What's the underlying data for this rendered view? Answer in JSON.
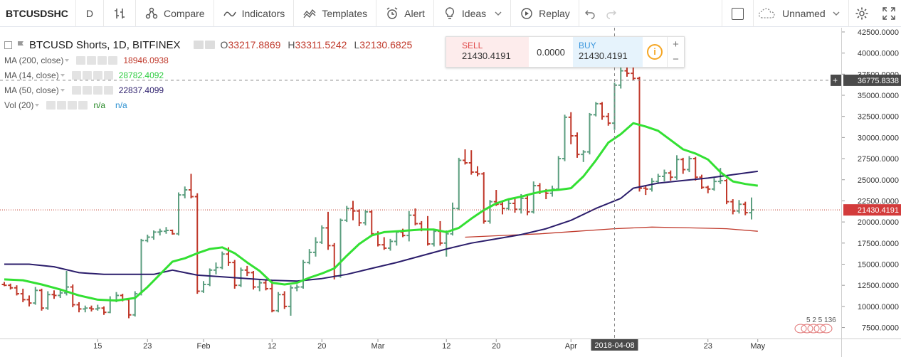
{
  "toolbar": {
    "symbol": "BTCUSDSHC",
    "interval": "D",
    "compare": "Compare",
    "indicators": "Indicators",
    "templates": "Templates",
    "alert": "Alert",
    "ideas": "Ideas",
    "replay": "Replay",
    "layout_name": "Unnamed"
  },
  "legend": {
    "title": "BTCUSD Shorts, 1D, BITFINEX",
    "open_label": "O",
    "open": "33217.8869",
    "high_label": "H",
    "high": "33311.5242",
    "low_label": "L",
    "low": "32130.6825",
    "studies": [
      {
        "label": "MA (200, close)",
        "value": "18946.0938",
        "color": "#c0392b"
      },
      {
        "label": "MA (14, close)",
        "value": "28782.4092",
        "color": "#2ecc40"
      },
      {
        "label": "MA (50, close)",
        "value": "22837.4099",
        "color": "#2b1d6b"
      },
      {
        "label": "Vol (20)",
        "value": "n/a",
        "value2": "n/a",
        "color": "#2a8a2a",
        "color2": "#2a8fd0"
      }
    ]
  },
  "trade": {
    "sell_label": "SELL",
    "sell_price_a": "214",
    "sell_price_b": "30.4191",
    "spread": "0.0000",
    "buy_label": "BUY",
    "buy_price_a": "214",
    "buy_price_b": "30.4191",
    "info": "i",
    "plus": "+",
    "minus": "−"
  },
  "price_axis": {
    "crosshair_label": "36775.8338",
    "last_price_label": "21430.4191",
    "crosshair_plus": "+"
  },
  "time_axis": {
    "crosshair_label": "2018-04-08"
  },
  "watermark_text": "5 2 5 136",
  "colors": {
    "up": "#5b9e7f",
    "down": "#c0392b",
    "ma14": "#33e033",
    "ma50": "#2b1d6b",
    "ma200": "#c0392b"
  },
  "chart_data": {
    "type": "ohlc",
    "y_ticks": [
      7500,
      10000,
      12500,
      15000,
      17500,
      20000,
      22500,
      25000,
      27500,
      30000,
      32500,
      35000,
      37500,
      40000,
      42500
    ],
    "ylim": [
      6200,
      43000
    ],
    "x_ticks": [
      {
        "label": "15",
        "bar": 15
      },
      {
        "label": "23",
        "bar": 23
      },
      {
        "label": "Feb",
        "bar": 32
      },
      {
        "label": "12",
        "bar": 43
      },
      {
        "label": "20",
        "bar": 51
      },
      {
        "label": "Mar",
        "bar": 60
      },
      {
        "label": "12",
        "bar": 71
      },
      {
        "label": "20",
        "bar": 79
      },
      {
        "label": "Apr",
        "bar": 91
      },
      {
        "label": "23",
        "bar": 113
      },
      {
        "label": "May",
        "bar": 121
      }
    ],
    "crosshair": {
      "bar": 98,
      "value": 36775.8338
    },
    "last_price": 21430.4191,
    "bars": [
      {
        "o": 12600,
        "h": 12900,
        "l": 12400,
        "c": 12500
      },
      {
        "o": 12500,
        "h": 12700,
        "l": 12000,
        "c": 12200
      },
      {
        "o": 12200,
        "h": 12500,
        "l": 11300,
        "c": 11500
      },
      {
        "o": 11500,
        "h": 12100,
        "l": 10500,
        "c": 10800
      },
      {
        "o": 10800,
        "h": 11300,
        "l": 10000,
        "c": 10400
      },
      {
        "o": 10400,
        "h": 12300,
        "l": 10200,
        "c": 11900
      },
      {
        "o": 11900,
        "h": 12100,
        "l": 9500,
        "c": 9800
      },
      {
        "o": 9800,
        "h": 11800,
        "l": 9600,
        "c": 11400
      },
      {
        "o": 11400,
        "h": 11900,
        "l": 10900,
        "c": 11300
      },
      {
        "o": 11300,
        "h": 12100,
        "l": 11000,
        "c": 11600
      },
      {
        "o": 11600,
        "h": 14200,
        "l": 11300,
        "c": 12300
      },
      {
        "o": 12300,
        "h": 12600,
        "l": 9900,
        "c": 10200
      },
      {
        "o": 10200,
        "h": 10500,
        "l": 9300,
        "c": 9700
      },
      {
        "o": 9700,
        "h": 10100,
        "l": 9300,
        "c": 9800
      },
      {
        "o": 9800,
        "h": 10100,
        "l": 9400,
        "c": 9700
      },
      {
        "o": 9700,
        "h": 10200,
        "l": 9500,
        "c": 9800
      },
      {
        "o": 9800,
        "h": 10000,
        "l": 9000,
        "c": 9300
      },
      {
        "o": 9300,
        "h": 11200,
        "l": 9200,
        "c": 10700
      },
      {
        "o": 10700,
        "h": 11700,
        "l": 10500,
        "c": 11300
      },
      {
        "o": 11300,
        "h": 11500,
        "l": 10600,
        "c": 10800
      },
      {
        "o": 10800,
        "h": 11000,
        "l": 8600,
        "c": 9000
      },
      {
        "o": 9000,
        "h": 11800,
        "l": 8800,
        "c": 11500
      },
      {
        "o": 11500,
        "h": 18000,
        "l": 11300,
        "c": 17800
      },
      {
        "o": 17800,
        "h": 18500,
        "l": 17600,
        "c": 18200
      },
      {
        "o": 18200,
        "h": 19000,
        "l": 17900,
        "c": 18800
      },
      {
        "o": 18800,
        "h": 19200,
        "l": 18400,
        "c": 18900
      },
      {
        "o": 18900,
        "h": 19400,
        "l": 18600,
        "c": 19000
      },
      {
        "o": 19000,
        "h": 19100,
        "l": 18500,
        "c": 18600
      },
      {
        "o": 18600,
        "h": 23500,
        "l": 18400,
        "c": 23200
      },
      {
        "o": 23200,
        "h": 24200,
        "l": 22800,
        "c": 23800
      },
      {
        "o": 23800,
        "h": 25700,
        "l": 22800,
        "c": 23000
      },
      {
        "o": 23000,
        "h": 23400,
        "l": 11500,
        "c": 11800
      },
      {
        "o": 11800,
        "h": 13000,
        "l": 11600,
        "c": 12600
      },
      {
        "o": 12600,
        "h": 14500,
        "l": 12400,
        "c": 14300
      },
      {
        "o": 14300,
        "h": 15200,
        "l": 13800,
        "c": 14600
      },
      {
        "o": 14600,
        "h": 16500,
        "l": 14400,
        "c": 16200
      },
      {
        "o": 16200,
        "h": 17000,
        "l": 14800,
        "c": 15200
      },
      {
        "o": 15200,
        "h": 15500,
        "l": 12100,
        "c": 12500
      },
      {
        "o": 12500,
        "h": 14600,
        "l": 12300,
        "c": 14300
      },
      {
        "o": 14300,
        "h": 14800,
        "l": 13600,
        "c": 14000
      },
      {
        "o": 14000,
        "h": 14200,
        "l": 12000,
        "c": 12300
      },
      {
        "o": 12300,
        "h": 13100,
        "l": 11800,
        "c": 12800
      },
      {
        "o": 12800,
        "h": 13200,
        "l": 11900,
        "c": 12100
      },
      {
        "o": 12100,
        "h": 13100,
        "l": 9300,
        "c": 9500
      },
      {
        "o": 9500,
        "h": 11700,
        "l": 9300,
        "c": 11400
      },
      {
        "o": 11400,
        "h": 11800,
        "l": 9700,
        "c": 10000
      },
      {
        "o": 10000,
        "h": 12500,
        "l": 8900,
        "c": 12200
      },
      {
        "o": 12200,
        "h": 12600,
        "l": 11800,
        "c": 12300
      },
      {
        "o": 12300,
        "h": 15500,
        "l": 12100,
        "c": 15200
      },
      {
        "o": 15200,
        "h": 16800,
        "l": 15000,
        "c": 16400
      },
      {
        "o": 16400,
        "h": 18200,
        "l": 15900,
        "c": 17600
      },
      {
        "o": 17600,
        "h": 19600,
        "l": 17400,
        "c": 19300
      },
      {
        "o": 19300,
        "h": 21200,
        "l": 16700,
        "c": 17200
      },
      {
        "o": 17200,
        "h": 17500,
        "l": 13200,
        "c": 13600
      },
      {
        "o": 13600,
        "h": 20400,
        "l": 13400,
        "c": 20200
      },
      {
        "o": 20200,
        "h": 21900,
        "l": 20000,
        "c": 21600
      },
      {
        "o": 21600,
        "h": 22500,
        "l": 20200,
        "c": 21300
      },
      {
        "o": 21300,
        "h": 21500,
        "l": 19500,
        "c": 19900
      },
      {
        "o": 19900,
        "h": 21400,
        "l": 19600,
        "c": 21200
      },
      {
        "o": 21200,
        "h": 21400,
        "l": 18300,
        "c": 18600
      },
      {
        "o": 18600,
        "h": 18900,
        "l": 17100,
        "c": 17300
      },
      {
        "o": 17300,
        "h": 18200,
        "l": 16700,
        "c": 16900
      },
      {
        "o": 16900,
        "h": 18000,
        "l": 16600,
        "c": 17700
      },
      {
        "o": 17700,
        "h": 19000,
        "l": 17200,
        "c": 18800
      },
      {
        "o": 18800,
        "h": 19200,
        "l": 18200,
        "c": 18400
      },
      {
        "o": 18400,
        "h": 21300,
        "l": 17700,
        "c": 20800
      },
      {
        "o": 20800,
        "h": 21600,
        "l": 19600,
        "c": 19800
      },
      {
        "o": 19800,
        "h": 20100,
        "l": 18900,
        "c": 19100
      },
      {
        "o": 19100,
        "h": 20700,
        "l": 17200,
        "c": 17400
      },
      {
        "o": 17400,
        "h": 19200,
        "l": 17100,
        "c": 18900
      },
      {
        "o": 18900,
        "h": 20100,
        "l": 17200,
        "c": 17500
      },
      {
        "o": 17500,
        "h": 19000,
        "l": 15900,
        "c": 18600
      },
      {
        "o": 18600,
        "h": 22300,
        "l": 18400,
        "c": 21600
      },
      {
        "o": 21600,
        "h": 27600,
        "l": 21400,
        "c": 27300
      },
      {
        "o": 27300,
        "h": 28600,
        "l": 26800,
        "c": 27000
      },
      {
        "o": 27000,
        "h": 28500,
        "l": 25600,
        "c": 25900
      },
      {
        "o": 25900,
        "h": 26600,
        "l": 25400,
        "c": 25700
      },
      {
        "o": 25700,
        "h": 25900,
        "l": 19800,
        "c": 20100
      },
      {
        "o": 20100,
        "h": 22600,
        "l": 19800,
        "c": 22400
      },
      {
        "o": 22400,
        "h": 23800,
        "l": 21900,
        "c": 22100
      },
      {
        "o": 22100,
        "h": 22400,
        "l": 20900,
        "c": 21600
      },
      {
        "o": 21600,
        "h": 22600,
        "l": 21400,
        "c": 22200
      },
      {
        "o": 22200,
        "h": 22900,
        "l": 21100,
        "c": 21500
      },
      {
        "o": 21500,
        "h": 23300,
        "l": 21000,
        "c": 22800
      },
      {
        "o": 22800,
        "h": 23100,
        "l": 20800,
        "c": 21200
      },
      {
        "o": 21200,
        "h": 24800,
        "l": 21000,
        "c": 24300
      },
      {
        "o": 24300,
        "h": 24600,
        "l": 23300,
        "c": 23600
      },
      {
        "o": 23600,
        "h": 23900,
        "l": 22700,
        "c": 23400
      },
      {
        "o": 23400,
        "h": 24300,
        "l": 23000,
        "c": 23900
      },
      {
        "o": 23900,
        "h": 27800,
        "l": 23700,
        "c": 27500
      },
      {
        "o": 27500,
        "h": 32700,
        "l": 27200,
        "c": 32400
      },
      {
        "o": 32400,
        "h": 33000,
        "l": 29200,
        "c": 30200
      },
      {
        "o": 30200,
        "h": 30600,
        "l": 27600,
        "c": 28000
      },
      {
        "o": 28000,
        "h": 28500,
        "l": 27100,
        "c": 28300
      },
      {
        "o": 28300,
        "h": 32900,
        "l": 28000,
        "c": 32700
      },
      {
        "o": 32700,
        "h": 34200,
        "l": 32500,
        "c": 34000
      },
      {
        "o": 34000,
        "h": 34200,
        "l": 32100,
        "c": 32500
      },
      {
        "o": 32500,
        "h": 32900,
        "l": 31400,
        "c": 31700
      },
      {
        "o": 31700,
        "h": 36500,
        "l": 30900,
        "c": 36200
      },
      {
        "o": 36200,
        "h": 38400,
        "l": 35800,
        "c": 37900
      },
      {
        "o": 37900,
        "h": 38500,
        "l": 37200,
        "c": 37600
      },
      {
        "o": 37600,
        "h": 38400,
        "l": 36800,
        "c": 37000
      },
      {
        "o": 37000,
        "h": 37200,
        "l": 23600,
        "c": 24000
      },
      {
        "o": 24000,
        "h": 24300,
        "l": 23200,
        "c": 23900
      },
      {
        "o": 23900,
        "h": 25200,
        "l": 23600,
        "c": 24800
      },
      {
        "o": 24800,
        "h": 25700,
        "l": 24500,
        "c": 25400
      },
      {
        "o": 25400,
        "h": 26200,
        "l": 24800,
        "c": 25800
      },
      {
        "o": 25800,
        "h": 26100,
        "l": 24900,
        "c": 25300
      },
      {
        "o": 25300,
        "h": 27900,
        "l": 25000,
        "c": 27400
      },
      {
        "o": 27400,
        "h": 27600,
        "l": 25700,
        "c": 26200
      },
      {
        "o": 26200,
        "h": 27800,
        "l": 25900,
        "c": 27500
      },
      {
        "o": 27500,
        "h": 27700,
        "l": 24900,
        "c": 25300
      },
      {
        "o": 25300,
        "h": 25600,
        "l": 23900,
        "c": 24100
      },
      {
        "o": 24100,
        "h": 24300,
        "l": 23400,
        "c": 23900
      },
      {
        "o": 23900,
        "h": 25200,
        "l": 23700,
        "c": 24800
      },
      {
        "o": 24800,
        "h": 26400,
        "l": 24500,
        "c": 24900
      },
      {
        "o": 24900,
        "h": 25100,
        "l": 22100,
        "c": 22400
      },
      {
        "o": 22400,
        "h": 22700,
        "l": 20900,
        "c": 21300
      },
      {
        "o": 21300,
        "h": 22600,
        "l": 21000,
        "c": 22100
      },
      {
        "o": 22100,
        "h": 22400,
        "l": 20800,
        "c": 21100
      },
      {
        "o": 21100,
        "h": 22900,
        "l": 20300,
        "c": 21430
      }
    ],
    "ma14": [
      [
        0,
        13200
      ],
      [
        3,
        13100
      ],
      [
        6,
        12600
      ],
      [
        9,
        12000
      ],
      [
        12,
        11300
      ],
      [
        15,
        10800
      ],
      [
        18,
        10700
      ],
      [
        21,
        11000
      ],
      [
        23,
        12300
      ],
      [
        25,
        13800
      ],
      [
        27,
        15300
      ],
      [
        29,
        15700
      ],
      [
        31,
        16300
      ],
      [
        33,
        16800
      ],
      [
        35,
        17000
      ],
      [
        37,
        16300
      ],
      [
        39,
        15200
      ],
      [
        41,
        14200
      ],
      [
        43,
        12800
      ],
      [
        45,
        12600
      ],
      [
        47,
        12800
      ],
      [
        49,
        13400
      ],
      [
        51,
        13900
      ],
      [
        53,
        14500
      ],
      [
        55,
        16000
      ],
      [
        57,
        17400
      ],
      [
        59,
        18400
      ],
      [
        61,
        18800
      ],
      [
        63,
        18900
      ],
      [
        65,
        19000
      ],
      [
        67,
        19100
      ],
      [
        69,
        19100
      ],
      [
        71,
        18800
      ],
      [
        73,
        19300
      ],
      [
        75,
        20400
      ],
      [
        77,
        21400
      ],
      [
        79,
        22200
      ],
      [
        81,
        22700
      ],
      [
        83,
        23000
      ],
      [
        85,
        23400
      ],
      [
        87,
        23700
      ],
      [
        89,
        23800
      ],
      [
        91,
        24000
      ],
      [
        93,
        25400
      ],
      [
        95,
        27300
      ],
      [
        97,
        29400
      ],
      [
        99,
        30400
      ],
      [
        101,
        31700
      ],
      [
        103,
        31300
      ],
      [
        105,
        30800
      ],
      [
        107,
        29700
      ],
      [
        109,
        28600
      ],
      [
        111,
        28100
      ],
      [
        113,
        27400
      ],
      [
        115,
        25900
      ],
      [
        117,
        24800
      ],
      [
        119,
        24500
      ],
      [
        121,
        24300
      ]
    ],
    "ma50": [
      [
        0,
        15000
      ],
      [
        4,
        15000
      ],
      [
        8,
        14700
      ],
      [
        12,
        14000
      ],
      [
        16,
        13800
      ],
      [
        20,
        13800
      ],
      [
        24,
        13800
      ],
      [
        27,
        14300
      ],
      [
        31,
        13700
      ],
      [
        35,
        13500
      ],
      [
        39,
        13300
      ],
      [
        43,
        13100
      ],
      [
        47,
        13000
      ],
      [
        51,
        13300
      ],
      [
        55,
        13800
      ],
      [
        59,
        14500
      ],
      [
        63,
        15200
      ],
      [
        67,
        16000
      ],
      [
        71,
        16800
      ],
      [
        75,
        17500
      ],
      [
        79,
        18000
      ],
      [
        83,
        18500
      ],
      [
        87,
        19200
      ],
      [
        91,
        20200
      ],
      [
        95,
        21600
      ],
      [
        99,
        22800
      ],
      [
        101,
        24000
      ],
      [
        105,
        24600
      ],
      [
        109,
        24900
      ],
      [
        113,
        25200
      ],
      [
        117,
        25600
      ],
      [
        121,
        26000
      ]
    ],
    "ma200": [
      [
        74,
        18200
      ],
      [
        80,
        18400
      ],
      [
        86,
        18600
      ],
      [
        92,
        18900
      ],
      [
        98,
        19200
      ],
      [
        104,
        19400
      ],
      [
        110,
        19300
      ],
      [
        116,
        19200
      ],
      [
        121,
        18900
      ]
    ]
  }
}
